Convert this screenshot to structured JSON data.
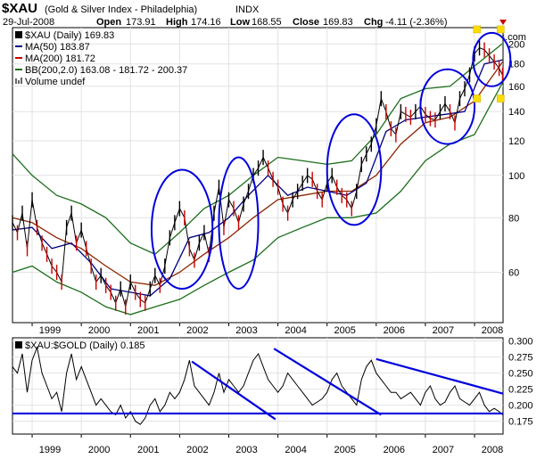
{
  "header": {
    "symbol": "$XAU",
    "name": "(Gold & Silver Index - Philadelphia)",
    "exchange": "INDX",
    "date": "29-Jul-2008",
    "open_label": "Open",
    "open": "173.91",
    "high_label": "High",
    "high": "174.16",
    "low_label": "Low",
    "low": "168.55",
    "close_label": "Close",
    "close": "169.83",
    "chg_label": "Chg",
    "chg": "-4.11 (-2.36%)",
    "watermark": "© StockCharts.com"
  },
  "colors": {
    "price_up": "#000000",
    "price_down": "#cc0000",
    "ma50": "#000080",
    "ma200": "#8b2500",
    "bollinger": "#1a6e1a",
    "ellipse": "#0000dd",
    "trendline": "#0000dd",
    "ratio_line": "#000000",
    "marker": "#ffdd00"
  },
  "chart_data": [
    {
      "type": "line",
      "title": "$XAU (Daily) 169.83",
      "legend": [
        {
          "label": "$XAU (Daily) 169.83"
        },
        {
          "label": "MA(50) 183.87"
        },
        {
          "label": "MA(200) 181.72"
        },
        {
          "label": "BB(200,2.0) 163.08 - 181.72 - 200.37"
        },
        {
          "label": "Volume undef"
        }
      ],
      "scale": "log",
      "ylim": [
        46,
        218
      ],
      "y_ticks": [
        60,
        80,
        100,
        120,
        140,
        160,
        180,
        200
      ],
      "x_ticks": [
        "1999",
        "2000",
        "2001",
        "2002",
        "2003",
        "2004",
        "2005",
        "2006",
        "2007",
        "2008"
      ],
      "x_tick_values": [
        1999,
        2000,
        2001,
        2002,
        2003,
        2004,
        2005,
        2006,
        2007,
        2008
      ],
      "xlim": [
        1998.6,
        2008.58
      ],
      "grid": true,
      "series": [
        {
          "key": "price",
          "x": [
            1998.6,
            1998.7,
            1998.8,
            1998.9,
            1999.0,
            1999.1,
            1999.2,
            1999.3,
            1999.4,
            1999.5,
            1999.6,
            1999.7,
            1999.8,
            1999.9,
            2000.0,
            2000.1,
            2000.2,
            2000.3,
            2000.4,
            2000.5,
            2000.6,
            2000.7,
            2000.8,
            2000.9,
            2001.0,
            2001.1,
            2001.2,
            2001.3,
            2001.4,
            2001.5,
            2001.6,
            2001.7,
            2001.8,
            2001.9,
            2002.0,
            2002.1,
            2002.2,
            2002.3,
            2002.4,
            2002.5,
            2002.6,
            2002.7,
            2002.8,
            2002.9,
            2003.0,
            2003.1,
            2003.2,
            2003.3,
            2003.4,
            2003.5,
            2003.6,
            2003.7,
            2003.8,
            2003.9,
            2004.0,
            2004.1,
            2004.2,
            2004.3,
            2004.4,
            2004.5,
            2004.6,
            2004.7,
            2004.8,
            2004.9,
            2005.0,
            2005.1,
            2005.2,
            2005.3,
            2005.4,
            2005.5,
            2005.6,
            2005.7,
            2005.8,
            2005.9,
            2006.0,
            2006.1,
            2006.2,
            2006.3,
            2006.4,
            2006.5,
            2006.6,
            2006.7,
            2006.8,
            2006.9,
            2007.0,
            2007.1,
            2007.2,
            2007.3,
            2007.4,
            2007.5,
            2007.6,
            2007.7,
            2007.8,
            2007.9,
            2008.0,
            2008.1,
            2008.2,
            2008.3,
            2008.4,
            2008.5,
            2008.57
          ],
          "values": [
            78,
            74,
            82,
            68,
            88,
            76,
            70,
            66,
            62,
            60,
            57,
            76,
            82,
            70,
            75,
            68,
            62,
            57,
            59,
            56,
            54,
            51,
            55,
            50,
            57,
            54,
            52,
            51,
            55,
            59,
            56,
            62,
            72,
            78,
            84,
            80,
            68,
            64,
            70,
            74,
            66,
            82,
            94,
            76,
            88,
            84,
            78,
            86,
            92,
            100,
            104,
            110,
            104,
            98,
            94,
            86,
            82,
            88,
            92,
            96,
            100,
            98,
            92,
            88,
            96,
            100,
            94,
            90,
            88,
            84,
            92,
            106,
            112,
            118,
            130,
            150,
            140,
            128,
            124,
            140,
            138,
            136,
            140,
            144,
            138,
            135,
            134,
            140,
            146,
            140,
            132,
            150,
            158,
            170,
            190,
            196,
            194,
            188,
            182,
            176,
            169.83
          ]
        },
        {
          "key": "ma50",
          "label": "MA(50) 183.87",
          "x": [
            1998.6,
            1999.0,
            1999.4,
            1999.8,
            2000.2,
            2000.6,
            2001.0,
            2001.4,
            2001.8,
            2002.2,
            2002.6,
            2003.0,
            2003.4,
            2003.8,
            2004.2,
            2004.6,
            2005.0,
            2005.4,
            2005.8,
            2006.2,
            2006.6,
            2007.0,
            2007.4,
            2007.8,
            2008.2,
            2008.57
          ],
          "values": [
            75,
            76,
            68,
            70,
            63,
            55,
            54,
            53,
            58,
            72,
            74,
            80,
            90,
            100,
            90,
            94,
            92,
            90,
            96,
            126,
            134,
            136,
            138,
            140,
            180,
            183.87
          ]
        },
        {
          "key": "ma200",
          "label": "MA(200) 181.72",
          "x": [
            1998.6,
            1999.0,
            1999.5,
            2000.0,
            2000.5,
            2001.0,
            2001.5,
            2002.0,
            2002.5,
            2003.0,
            2003.5,
            2004.0,
            2004.5,
            2005.0,
            2005.5,
            2006.0,
            2006.5,
            2007.0,
            2007.5,
            2008.0,
            2008.57
          ],
          "values": [
            80,
            78,
            72,
            68,
            62,
            57,
            56,
            60,
            66,
            72,
            80,
            88,
            90,
            92,
            92,
            100,
            118,
            132,
            136,
            148,
            181.72
          ]
        },
        {
          "key": "bb_upper",
          "label": "BB(200,2.0) upper 200.37",
          "x": [
            1998.6,
            1999.0,
            1999.5,
            2000.0,
            2000.5,
            2001.0,
            2001.5,
            2002.0,
            2002.5,
            2003.0,
            2003.5,
            2004.0,
            2004.5,
            2005.0,
            2005.5,
            2006.0,
            2006.5,
            2007.0,
            2007.5,
            2008.0,
            2008.57
          ],
          "values": [
            112,
            100,
            90,
            86,
            80,
            70,
            66,
            74,
            84,
            90,
            100,
            110,
            108,
            106,
            108,
            124,
            150,
            158,
            160,
            178,
            200.37
          ]
        },
        {
          "key": "bb_lower",
          "label": "BB(200,2.0) lower 163.08",
          "x": [
            1998.6,
            1999.0,
            1999.5,
            2000.0,
            2000.5,
            2001.0,
            2001.5,
            2002.0,
            2002.5,
            2003.0,
            2003.5,
            2004.0,
            2004.5,
            2005.0,
            2005.5,
            2006.0,
            2006.5,
            2007.0,
            2007.5,
            2008.0,
            2008.57
          ],
          "values": [
            60,
            62,
            57,
            54,
            50,
            48,
            50,
            52,
            56,
            60,
            64,
            72,
            76,
            80,
            80,
            82,
            92,
            108,
            118,
            124,
            163.08
          ]
        }
      ]
    },
    {
      "type": "line",
      "title": "$XAU:$GOLD (Daily) 0.185",
      "ylim": [
        0.155,
        0.305
      ],
      "y_ticks": [
        "0.175",
        "0.200",
        "0.225",
        "0.250",
        "0.275",
        "0.300"
      ],
      "y_tick_values": [
        0.175,
        0.2,
        0.225,
        0.25,
        0.275,
        0.3
      ],
      "x_ticks": [
        "1999",
        "2000",
        "2001",
        "2002",
        "2003",
        "2004",
        "2005",
        "2006",
        "2007",
        "2008"
      ],
      "x_tick_values": [
        1999,
        2000,
        2001,
        2002,
        2003,
        2004,
        2005,
        2006,
        2007,
        2008
      ],
      "xlim": [
        1998.6,
        2008.58
      ],
      "grid": true,
      "series": [
        {
          "key": "ratio",
          "x": [
            1998.6,
            1998.7,
            1998.8,
            1998.9,
            1999.0,
            1999.1,
            1999.2,
            1999.3,
            1999.4,
            1999.5,
            1999.6,
            1999.7,
            1999.8,
            1999.9,
            2000.0,
            2000.1,
            2000.2,
            2000.3,
            2000.4,
            2000.5,
            2000.6,
            2000.7,
            2000.8,
            2000.9,
            2001.0,
            2001.1,
            2001.2,
            2001.3,
            2001.4,
            2001.5,
            2001.6,
            2001.7,
            2001.8,
            2001.9,
            2002.0,
            2002.1,
            2002.2,
            2002.3,
            2002.4,
            2002.5,
            2002.6,
            2002.7,
            2002.8,
            2002.9,
            2003.0,
            2003.1,
            2003.2,
            2003.3,
            2003.4,
            2003.5,
            2003.6,
            2003.7,
            2003.8,
            2003.9,
            2004.0,
            2004.1,
            2004.2,
            2004.3,
            2004.4,
            2004.5,
            2004.6,
            2004.7,
            2004.8,
            2004.9,
            2005.0,
            2005.1,
            2005.2,
            2005.3,
            2005.4,
            2005.5,
            2005.6,
            2005.7,
            2005.8,
            2005.9,
            2006.0,
            2006.1,
            2006.2,
            2006.3,
            2006.4,
            2006.5,
            2006.6,
            2006.7,
            2006.8,
            2006.9,
            2007.0,
            2007.1,
            2007.2,
            2007.3,
            2007.4,
            2007.5,
            2007.6,
            2007.7,
            2007.8,
            2007.9,
            2008.0,
            2008.1,
            2008.2,
            2008.3,
            2008.4,
            2008.5,
            2008.57
          ],
          "values": [
            0.26,
            0.25,
            0.28,
            0.22,
            0.27,
            0.29,
            0.25,
            0.23,
            0.21,
            0.22,
            0.19,
            0.25,
            0.28,
            0.24,
            0.26,
            0.24,
            0.22,
            0.2,
            0.21,
            0.2,
            0.19,
            0.185,
            0.2,
            0.18,
            0.19,
            0.175,
            0.17,
            0.18,
            0.2,
            0.21,
            0.19,
            0.2,
            0.22,
            0.21,
            0.22,
            0.24,
            0.27,
            0.23,
            0.22,
            0.21,
            0.2,
            0.22,
            0.25,
            0.22,
            0.24,
            0.23,
            0.22,
            0.23,
            0.25,
            0.27,
            0.28,
            0.26,
            0.24,
            0.23,
            0.22,
            0.23,
            0.25,
            0.24,
            0.23,
            0.22,
            0.21,
            0.2,
            0.205,
            0.21,
            0.22,
            0.24,
            0.25,
            0.23,
            0.22,
            0.21,
            0.2,
            0.24,
            0.26,
            0.27,
            0.25,
            0.24,
            0.23,
            0.22,
            0.22,
            0.21,
            0.215,
            0.22,
            0.21,
            0.2,
            0.22,
            0.23,
            0.21,
            0.2,
            0.205,
            0.22,
            0.23,
            0.21,
            0.205,
            0.2,
            0.21,
            0.22,
            0.2,
            0.19,
            0.195,
            0.19,
            0.185
          ]
        }
      ],
      "trendlines": [
        {
          "from": [
            2002.25,
            0.268
          ],
          "to": [
            2003.95,
            0.178
          ]
        },
        {
          "from": [
            2003.92,
            0.288
          ],
          "to": [
            2006.1,
            0.185
          ]
        },
        {
          "from": [
            2006.0,
            0.272
          ],
          "to": [
            2008.58,
            0.218
          ]
        },
        {
          "from": [
            1998.6,
            0.187
          ],
          "to": [
            2008.58,
            0.187
          ]
        }
      ]
    }
  ],
  "annotations": {
    "ellipses": [
      {
        "cx": 2002.05,
        "cy": 77,
        "rx_years": 0.62,
        "ry_top": 103,
        "ry_bottom": 55
      },
      {
        "cx": 2003.2,
        "cy": 78,
        "rx_years": 0.4,
        "ry_top": 110,
        "ry_bottom": 55
      },
      {
        "cx": 2005.55,
        "cy": 103,
        "rx_years": 0.55,
        "ry_top": 138,
        "ry_bottom": 77
      },
      {
        "cx": 2007.45,
        "cy": 142,
        "rx_years": 0.55,
        "ry_top": 175,
        "ry_bottom": 118
      },
      {
        "cx": 2008.35,
        "cy": 186,
        "rx_years": 0.38,
        "ry_top": 212,
        "ry_bottom": 160
      }
    ],
    "markers": [
      {
        "x": 2008.05,
        "y": 216
      },
      {
        "x": 2008.05,
        "y": 150
      },
      {
        "x": 2008.53,
        "y": 216
      },
      {
        "x": 2008.53,
        "y": 150
      }
    ]
  }
}
